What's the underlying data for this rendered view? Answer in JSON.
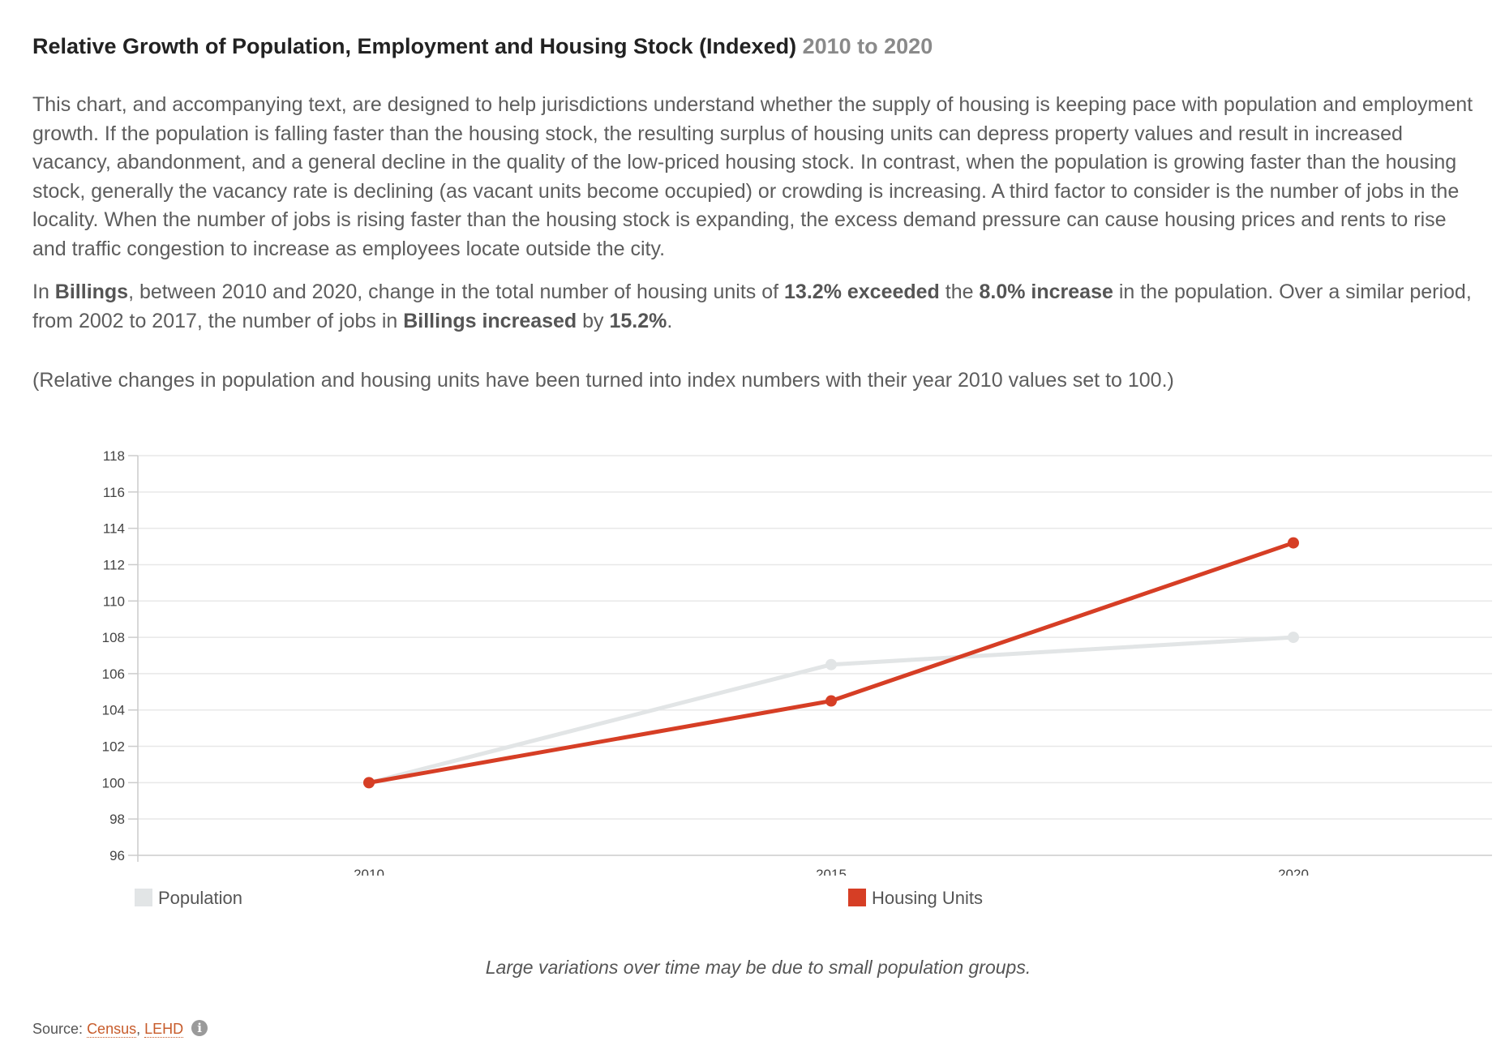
{
  "header": {
    "title": "Relative Growth of Population, Employment and Housing Stock (Indexed)",
    "range": "2010 to 2020"
  },
  "intro": "This chart, and accompanying text, are designed to help jurisdictions understand whether the supply of housing is keeping pace with population and employment growth. If the population is falling faster than the housing stock, the resulting surplus of housing units can depress property values and result in increased vacancy, abandonment, and a general decline in the quality of the low-priced housing stock. In contrast, when the population is growing faster than the housing stock, generally the vacancy rate is declining (as vacant units become occupied) or crowding is increasing. A third factor to consider is the number of jobs in the locality. When the number of jobs is rising faster than the housing stock is expanding, the excess demand pressure can cause housing prices and rents to rise and traffic congestion to increase as employees locate outside the city.",
  "summary": {
    "t1": "In ",
    "place": "Billings",
    "t2": ", between 2010 and 2020, change in the total number of housing units of ",
    "housing_change": "13.2% exceeded",
    "t3": " the ",
    "pop_change": "8.0% increase",
    "t4": " in the population. Over a similar period, from 2002 to 2017, the number of jobs in ",
    "jobs_place": "Billings increased",
    "t5": " by ",
    "jobs_change": "15.2%",
    "t6": "."
  },
  "index_note": "(Relative changes in population and housing units have been turned into index numbers with their year 2010 values set to 100.)",
  "chart_data": {
    "type": "line",
    "x": [
      "2010",
      "2015",
      "2020"
    ],
    "xlim": [
      2007.5,
      2022.5
    ],
    "ylim": [
      96,
      118
    ],
    "yticks": [
      96,
      98,
      100,
      102,
      104,
      106,
      108,
      110,
      112,
      114,
      116,
      118
    ],
    "grid": true,
    "legend_position": "bottom",
    "series": [
      {
        "name": "Population",
        "color": "#e2e5e6",
        "values": [
          100,
          106.5,
          108
        ]
      },
      {
        "name": "Housing Units",
        "color": "#d63e25",
        "values": [
          100,
          104.5,
          113.2
        ]
      }
    ]
  },
  "footnote": "Large variations over time may be due to small population groups.",
  "source": {
    "label": "Source:",
    "links": [
      "Census",
      "LEHD"
    ],
    "separator": ", ",
    "icon": "info-icon"
  }
}
